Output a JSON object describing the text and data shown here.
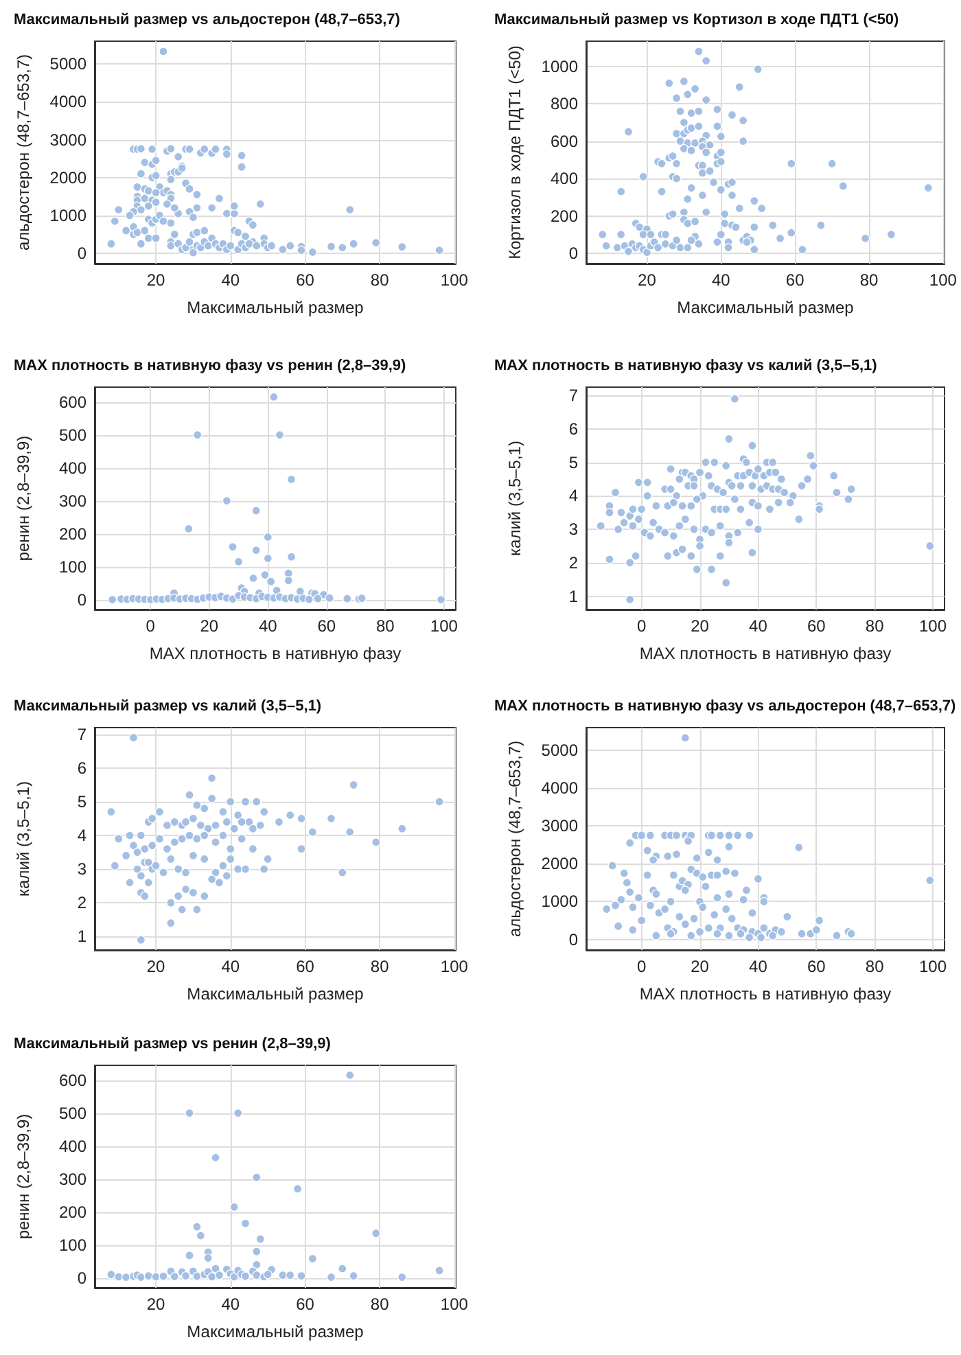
{
  "chart_data": [
    {
      "type": "scatter",
      "title": "Максимальный размер vs альдостерон (48,7–653,7)",
      "xlabel": "Максимальный размер",
      "ylabel": "альдостерон (48,7–653,7)",
      "xlim": [
        3.6,
        100.4
      ],
      "xticks": [
        20,
        40,
        60,
        80,
        100
      ],
      "ylim": [
        -270,
        5600
      ],
      "yticks": [
        0,
        1000,
        2000,
        3000,
        4000,
        5000
      ],
      "grid": true,
      "marker": "circle",
      "color": "#a3bfe3",
      "x": [
        22,
        14,
        15,
        16,
        19,
        23,
        24,
        28,
        29,
        32,
        33,
        35,
        36,
        39,
        39,
        43,
        43,
        17,
        19,
        20,
        16,
        19,
        20,
        24,
        24,
        25,
        26,
        26,
        27,
        27,
        28,
        29,
        15,
        17,
        18,
        21,
        22,
        23,
        24,
        24,
        31,
        15,
        15,
        17,
        19,
        20,
        20,
        23,
        18,
        15,
        16,
        14,
        10,
        9,
        13,
        12,
        14,
        14,
        15,
        16,
        17,
        18,
        18,
        19,
        20,
        21,
        22,
        24,
        26,
        25,
        29,
        30,
        31,
        35,
        37,
        39,
        41,
        41,
        45,
        46,
        48,
        8,
        20,
        25,
        30,
        31,
        33,
        41,
        42,
        44,
        46,
        49,
        49,
        24,
        24,
        26,
        27,
        28,
        29,
        30,
        30,
        31,
        32,
        33,
        34,
        35,
        36,
        37,
        38,
        39,
        40,
        42,
        43,
        44,
        45,
        47,
        50,
        51,
        54,
        56,
        59,
        59,
        62,
        67,
        70,
        72,
        73,
        79,
        86,
        96
      ],
      "values": [
        5330,
        2750,
        2750,
        2760,
        2750,
        2700,
        2760,
        2750,
        2750,
        2650,
        2750,
        2640,
        2750,
        2750,
        2620,
        2580,
        2280,
        2400,
        2350,
        2450,
        2100,
        2000,
        2050,
        2100,
        1950,
        2150,
        2150,
        2550,
        2300,
        2250,
        1850,
        1700,
        1750,
        1700,
        1650,
        1750,
        1600,
        1650,
        1550,
        1450,
        1550,
        1500,
        1400,
        1450,
        1400,
        1600,
        1350,
        1300,
        1250,
        1250,
        1150,
        1100,
        1150,
        850,
        1000,
        600,
        500,
        700,
        550,
        250,
        600,
        400,
        900,
        800,
        900,
        1000,
        850,
        800,
        1050,
        1200,
        1100,
        950,
        1200,
        1200,
        1450,
        1050,
        1050,
        1250,
        850,
        750,
        1300,
        250,
        400,
        500,
        500,
        550,
        600,
        600,
        550,
        450,
        300,
        400,
        250,
        300,
        200,
        250,
        100,
        150,
        300,
        100,
        20,
        200,
        150,
        300,
        200,
        400,
        250,
        150,
        250,
        100,
        200,
        100,
        250,
        150,
        250,
        200,
        150,
        200,
        100,
        200,
        180,
        80,
        30,
        180,
        150,
        1150,
        250,
        280,
        170,
        80
      ]
    },
    {
      "type": "scatter",
      "title": "Максимальный размер vs Кортизол в ходе ПДТ1 (<50)",
      "xlabel": "Максимальный размер",
      "ylabel": "Кортизол в ходе ПДТ1 (<50)",
      "xlim": [
        3.6,
        100.4
      ],
      "xticks": [
        20,
        40,
        60,
        80,
        100
      ],
      "ylim": [
        -55,
        1135
      ],
      "yticks": [
        0,
        200,
        400,
        600,
        800,
        1000
      ],
      "grid": true,
      "marker": "circle",
      "color": "#a3bfe3",
      "x": [
        34,
        36,
        50,
        26,
        30,
        33,
        45,
        31,
        28,
        36,
        29,
        32,
        34,
        39,
        43,
        46,
        30,
        28,
        30,
        31,
        32,
        34,
        36,
        39,
        40,
        15,
        29,
        31,
        33,
        35,
        36,
        37,
        46,
        30,
        32,
        35,
        39,
        36,
        40,
        26,
        27,
        23,
        24,
        28,
        34,
        35,
        39,
        40,
        59,
        70,
        19,
        27,
        28,
        35,
        37,
        38,
        42,
        43,
        73,
        96,
        13,
        24,
        32,
        35,
        40,
        43,
        31,
        26,
        27,
        30,
        36,
        41,
        45,
        49,
        51,
        30,
        31,
        33,
        41,
        43,
        44,
        54,
        67,
        17,
        18,
        20,
        19,
        21,
        13,
        8,
        24,
        25,
        33,
        40,
        42,
        46,
        47,
        48,
        49,
        56,
        59,
        79,
        86,
        9,
        12,
        14,
        15,
        16,
        17,
        18,
        19,
        20,
        21,
        22,
        23,
        25,
        27,
        28,
        29,
        31,
        32,
        34,
        39,
        42,
        47,
        49,
        62
      ],
      "values": [
        1080,
        1030,
        985,
        910,
        920,
        880,
        890,
        850,
        830,
        820,
        760,
        750,
        760,
        770,
        740,
        710,
        700,
        640,
        640,
        660,
        670,
        680,
        630,
        680,
        625,
        650,
        600,
        590,
        590,
        600,
        580,
        580,
        600,
        560,
        550,
        570,
        520,
        540,
        540,
        510,
        520,
        490,
        480,
        480,
        470,
        470,
        480,
        490,
        480,
        480,
        410,
        410,
        400,
        430,
        440,
        380,
        370,
        380,
        360,
        350,
        330,
        330,
        350,
        310,
        340,
        310,
        290,
        200,
        210,
        220,
        220,
        210,
        240,
        280,
        240,
        180,
        160,
        170,
        160,
        150,
        140,
        150,
        150,
        160,
        140,
        130,
        100,
        100,
        100,
        100,
        100,
        100,
        90,
        100,
        60,
        70,
        90,
        70,
        140,
        80,
        110,
        80,
        100,
        40,
        30,
        40,
        10,
        50,
        30,
        40,
        20,
        5,
        40,
        60,
        30,
        50,
        40,
        70,
        30,
        30,
        70,
        50,
        60,
        30,
        60,
        20,
        20
      ]
    },
    {
      "type": "scatter",
      "title": "MAX плотность в нативную фазу vs ренин (2,8–39,9)",
      "xlabel": "MAX плотность в нативную фазу",
      "ylabel": "ренин (2,8–39,9)",
      "xlim": [
        -19,
        104
      ],
      "xticks": [
        0,
        20,
        40,
        60,
        80,
        100
      ],
      "ylim": [
        -30,
        645
      ],
      "yticks": [
        0,
        100,
        200,
        300,
        400,
        500,
        600
      ],
      "grid": true,
      "marker": "circle",
      "color": "#a3bfe3",
      "x": [
        42,
        16,
        44,
        48,
        26,
        36,
        13,
        40,
        28,
        36,
        30,
        40,
        48,
        39,
        47,
        35,
        41,
        47,
        31,
        8,
        32,
        51,
        55,
        56,
        59,
        43,
        37,
        -13,
        -10,
        -8,
        -6,
        -4,
        -2,
        0,
        2,
        4,
        6,
        8,
        10,
        12,
        14,
        16,
        18,
        20,
        22,
        24,
        26,
        28,
        30,
        32,
        34,
        36,
        38,
        40,
        42,
        44,
        46,
        48,
        50,
        52,
        54,
        57,
        61,
        67,
        71,
        72,
        99
      ],
      "values": [
        615,
        500,
        500,
        365,
        300,
        270,
        215,
        190,
        160,
        150,
        115,
        125,
        130,
        75,
        80,
        65,
        55,
        58,
        35,
        20,
        25,
        25,
        20,
        18,
        15,
        28,
        20,
        0,
        2,
        1,
        3,
        2,
        1,
        0,
        2,
        1,
        3,
        5,
        2,
        4,
        3,
        1,
        5,
        8,
        6,
        10,
        5,
        2,
        12,
        8,
        6,
        3,
        10,
        7,
        5,
        8,
        3,
        6,
        2,
        4,
        1,
        3,
        5,
        3,
        2,
        4,
        0
      ]
    },
    {
      "type": "scatter",
      "title": "MAX плотность в нативную фазу vs калий (3,5–5,1)",
      "xlabel": "MAX плотность в нативную фазу",
      "ylabel": "калий (3,5–5,1)",
      "xlim": [
        -19,
        104
      ],
      "xticks": [
        0,
        20,
        40,
        60,
        80,
        100
      ],
      "ylim": [
        0.6,
        7.25
      ],
      "yticks": [
        1,
        2,
        3,
        4,
        5,
        6,
        7
      ],
      "grid": true,
      "marker": "circle",
      "color": "#a3bfe3",
      "x": [
        32,
        30,
        38,
        58,
        35,
        59,
        10,
        22,
        25,
        29,
        36,
        43,
        45,
        66,
        -1,
        2,
        14,
        15,
        20,
        17,
        18,
        13,
        23,
        33,
        35,
        37,
        39,
        40,
        42,
        44,
        46,
        48,
        57,
        -9,
        2,
        8,
        10,
        12,
        16,
        18,
        21,
        24,
        26,
        28,
        30,
        31,
        34,
        38,
        41,
        43,
        45,
        47,
        49,
        52,
        55,
        67,
        72,
        71,
        -11,
        -11,
        -7,
        -4,
        -3,
        0,
        5,
        9,
        11,
        14,
        17,
        19,
        25,
        27,
        29,
        32,
        34,
        38,
        40,
        44,
        47,
        51,
        61,
        61,
        -14,
        -8,
        -6,
        -3,
        -1,
        1,
        4,
        6,
        8,
        11,
        13,
        15,
        18,
        20,
        22,
        24,
        27,
        30,
        33,
        37,
        40,
        54,
        -11,
        -4,
        -2,
        3,
        9,
        12,
        14,
        17,
        20,
        19,
        24,
        27,
        30,
        38,
        29,
        -4,
        99
      ],
      "values": [
        6.9,
        5.7,
        5.5,
        5.2,
        5.1,
        4.9,
        4.8,
        5.0,
        5.0,
        4.9,
        5.0,
        5.0,
        5.0,
        4.6,
        4.4,
        4.4,
        4.7,
        4.7,
        4.7,
        4.6,
        4.5,
        4.5,
        4.6,
        4.6,
        4.6,
        4.7,
        4.6,
        4.8,
        4.6,
        4.7,
        4.7,
        4.5,
        4.5,
        4.1,
        4.0,
        4.2,
        4.2,
        4.0,
        4.3,
        4.3,
        4.0,
        4.3,
        4.2,
        4.1,
        4.4,
        4.3,
        4.3,
        4.3,
        4.2,
        4.3,
        4.2,
        4.2,
        4.1,
        4.0,
        4.3,
        4.1,
        4.2,
        3.9,
        3.7,
        3.5,
        3.5,
        3.4,
        3.6,
        3.6,
        3.7,
        3.7,
        3.8,
        3.7,
        3.7,
        3.9,
        3.6,
        3.6,
        3.6,
        3.9,
        3.6,
        3.8,
        3.7,
        3.6,
        3.8,
        3.8,
        3.7,
        3.6,
        3.1,
        3.0,
        3.2,
        3.1,
        3.3,
        2.9,
        3.2,
        3.0,
        2.9,
        2.8,
        3.1,
        3.3,
        3.0,
        2.7,
        3.0,
        2.9,
        3.1,
        2.8,
        2.9,
        3.2,
        3.0,
        3.3,
        2.1,
        2.0,
        2.2,
        2.8,
        2.2,
        2.3,
        2.4,
        2.2,
        2.5,
        1.8,
        1.8,
        2.2,
        2.6,
        2.3,
        1.4,
        0.9,
        2.5
      ]
    },
    {
      "type": "scatter",
      "title": "Максимальный размер vs калий (3,5–5,1)",
      "xlabel": "Максимальный размер",
      "ylabel": "калий (3,5–5,1)",
      "xlim": [
        3.6,
        100.4
      ],
      "xticks": [
        20,
        40,
        60,
        80,
        100
      ],
      "ylim": [
        0.6,
        7.2
      ],
      "yticks": [
        1,
        2,
        3,
        4,
        5,
        6,
        7
      ],
      "grid": true,
      "marker": "circle",
      "color": "#a3bfe3",
      "x": [
        14,
        35,
        73,
        29,
        96,
        8,
        21,
        35,
        40,
        44,
        47,
        31,
        33,
        38,
        42,
        45,
        49,
        53,
        56,
        59,
        67,
        86,
        62,
        72,
        79,
        59,
        70,
        10,
        13,
        16,
        18,
        19,
        23,
        25,
        27,
        28,
        30,
        32,
        34,
        36,
        39,
        41,
        43,
        46,
        48,
        12,
        14,
        15,
        17,
        19,
        21,
        23,
        25,
        27,
        29,
        31,
        33,
        36,
        38,
        40,
        43,
        46,
        9,
        13,
        15,
        16,
        17,
        18,
        19,
        20,
        22,
        24,
        26,
        28,
        30,
        33,
        36,
        38,
        40,
        42,
        44,
        49,
        50,
        16,
        17,
        18,
        24,
        26,
        27,
        28,
        30,
        31,
        33,
        35,
        37,
        39,
        24,
        16
      ],
      "values": [
        6.9,
        5.7,
        5.5,
        5.2,
        5.0,
        4.7,
        4.7,
        5.1,
        5.0,
        5.0,
        5.0,
        4.9,
        4.8,
        4.7,
        4.6,
        4.4,
        4.7,
        4.4,
        4.6,
        4.5,
        4.5,
        4.2,
        4.1,
        4.1,
        3.8,
        3.6,
        2.9,
        3.9,
        4.0,
        4.0,
        4.4,
        4.5,
        4.3,
        4.4,
        4.3,
        4.4,
        4.5,
        4.3,
        4.2,
        4.3,
        4.4,
        4.2,
        4.4,
        4.2,
        4.3,
        3.4,
        3.7,
        3.5,
        3.6,
        3.7,
        3.9,
        3.6,
        3.8,
        3.9,
        4.0,
        3.9,
        4.0,
        3.8,
        4.0,
        3.6,
        3.9,
        3.6,
        3.1,
        2.6,
        3.0,
        2.8,
        3.2,
        3.2,
        3.0,
        3.1,
        2.9,
        3.3,
        3.0,
        2.9,
        3.4,
        3.3,
        2.9,
        3.1,
        3.3,
        3.0,
        3.0,
        3.0,
        3.3,
        2.3,
        2.2,
        2.6,
        2.0,
        2.2,
        1.8,
        2.4,
        2.3,
        1.8,
        2.2,
        2.7,
        2.6,
        2.8,
        1.4,
        0.9
      ]
    },
    {
      "type": "scatter",
      "title": "MAX плотность в нативную фазу vs альдостерон (48,7–653,7)",
      "xlabel": "MAX плотность в нативную фазу",
      "ylabel": "альдостерон (48,7–653,7)",
      "xlim": [
        -19,
        104
      ],
      "xticks": [
        0,
        20,
        40,
        60,
        80,
        100
      ],
      "ylim": [
        -280,
        5600
      ],
      "yticks": [
        0,
        1000,
        2000,
        3000,
        4000,
        5000
      ],
      "grid": true,
      "marker": "circle",
      "color": "#a3bfe3",
      "x": [
        15,
        -2,
        0,
        3,
        5,
        8,
        10,
        12,
        15,
        16,
        17,
        23,
        24,
        27,
        30,
        33,
        37,
        54,
        99,
        -10,
        -4,
        2,
        4,
        9,
        12,
        16,
        19,
        23,
        26,
        30,
        -6,
        -5,
        -7,
        -4,
        -1,
        -12,
        -9,
        -3,
        2,
        4,
        5,
        11,
        13,
        14,
        16,
        17,
        19,
        21,
        24,
        26,
        29,
        32,
        36,
        40,
        42,
        10,
        15,
        20,
        22,
        26,
        30,
        35,
        38,
        42,
        -8,
        -3,
        0,
        3,
        6,
        8,
        9,
        11,
        13,
        15,
        18,
        21,
        23,
        25,
        27,
        29,
        31,
        33,
        35,
        38,
        40,
        42,
        44,
        46,
        48,
        50,
        55,
        58,
        60,
        61,
        67,
        71,
        72,
        5,
        10,
        17,
        20,
        26,
        30,
        34,
        37,
        41,
        45
      ],
      "values": [
        5330,
        2750,
        2750,
        2750,
        2200,
        2750,
        2750,
        2750,
        2750,
        2650,
        2750,
        2750,
        2750,
        2750,
        2750,
        2750,
        2750,
        2430,
        1560,
        1950,
        2550,
        2350,
        2100,
        2200,
        2250,
        2600,
        2150,
        2300,
        2100,
        2450,
        1750,
        1500,
        1050,
        1250,
        1100,
        800,
        900,
        850,
        1700,
        1300,
        1200,
        1700,
        1400,
        1550,
        1450,
        1850,
        1750,
        1650,
        1700,
        1700,
        1800,
        1750,
        1300,
        1600,
        1100,
        1000,
        1300,
        1000,
        1400,
        1100,
        1200,
        1050,
        700,
        1000,
        350,
        250,
        500,
        900,
        700,
        800,
        300,
        200,
        600,
        400,
        550,
        850,
        300,
        650,
        300,
        800,
        550,
        300,
        250,
        200,
        150,
        300,
        150,
        250,
        200,
        600,
        150,
        150,
        250,
        500,
        100,
        200,
        150,
        100,
        150,
        100,
        200,
        150,
        100,
        150,
        50,
        50,
        100
      ]
    },
    {
      "type": "scatter",
      "title": "Максимальный размер vs ренин (2,8–39,9)",
      "xlabel": "Максимальный размер",
      "ylabel": "ренин (2,8–39,9)",
      "xlim": [
        3.6,
        100.4
      ],
      "xticks": [
        20,
        40,
        60,
        80,
        100
      ],
      "ylim": [
        -30,
        645
      ],
      "yticks": [
        0,
        100,
        200,
        300,
        400,
        500,
        600
      ],
      "grid": true,
      "marker": "circle",
      "color": "#a3bfe3",
      "x": [
        72,
        29,
        42,
        36,
        47,
        58,
        41,
        44,
        31,
        79,
        32,
        48,
        34,
        47,
        29,
        34,
        62,
        47,
        70,
        96,
        51,
        8,
        10,
        12,
        14,
        15,
        16,
        18,
        20,
        22,
        24,
        25,
        27,
        28,
        30,
        31,
        33,
        34,
        35,
        36,
        37,
        39,
        40,
        41,
        42,
        43,
        44,
        46,
        47,
        49,
        50,
        54,
        56,
        59,
        67,
        73,
        86
      ],
      "values": [
        615,
        500,
        500,
        365,
        305,
        270,
        215,
        165,
        155,
        135,
        128,
        118,
        78,
        80,
        68,
        60,
        58,
        40,
        28,
        22,
        25,
        10,
        3,
        2,
        5,
        8,
        2,
        6,
        3,
        5,
        20,
        4,
        18,
        6,
        20,
        5,
        10,
        18,
        3,
        28,
        8,
        26,
        12,
        3,
        22,
        10,
        5,
        20,
        8,
        3,
        10,
        8,
        8,
        6,
        2,
        6,
        2
      ]
    }
  ]
}
